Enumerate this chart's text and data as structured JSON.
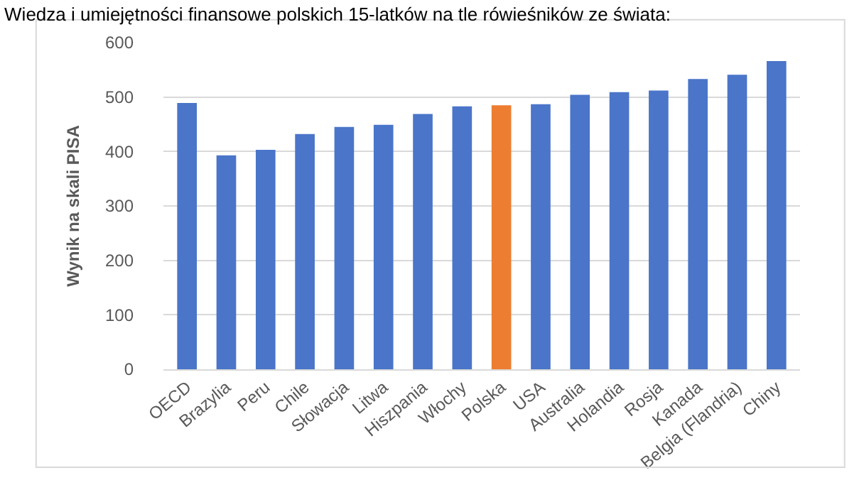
{
  "chart_data": {
    "type": "bar",
    "title": "Wiedza i umiejętności finansowe polskich 15-latków na tle rówieśników ze świata:",
    "ylabel": "Wynik na skali PISA",
    "categories": [
      "OECD",
      "Brazylia",
      "Peru",
      "Chile",
      "Słowacja",
      "Litwa",
      "Hiszpania",
      "Włochy",
      "Polska",
      "USA",
      "Australia",
      "Holandia",
      "Rosja",
      "Kanada",
      "Belgia (Flandria)",
      "Chiny"
    ],
    "values": [
      489,
      393,
      403,
      432,
      445,
      449,
      469,
      483,
      485,
      487,
      504,
      509,
      512,
      533,
      541,
      566
    ],
    "colors": [
      "#4a75c9",
      "#4a75c9",
      "#4a75c9",
      "#4a75c9",
      "#4a75c9",
      "#4a75c9",
      "#4a75c9",
      "#4a75c9",
      "#ed7d31",
      "#4a75c9",
      "#4a75c9",
      "#4a75c9",
      "#4a75c9",
      "#4a75c9",
      "#4a75c9",
      "#4a75c9"
    ],
    "ylim": [
      0,
      600
    ],
    "yticks": [
      0,
      100,
      200,
      300,
      400,
      500,
      600
    ],
    "grid": "y",
    "legend": false
  }
}
